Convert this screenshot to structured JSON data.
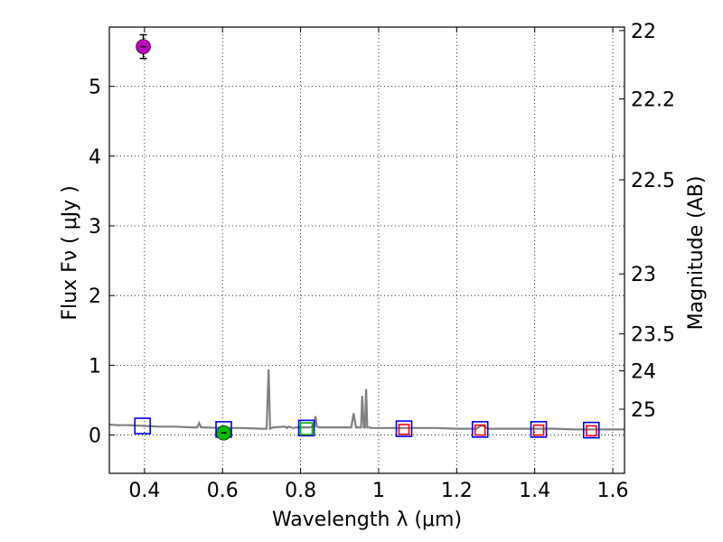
{
  "chart_data": {
    "type": "scatter",
    "xlabel": "Wavelength  λ (μm)",
    "ylabel": "Flux  Fν  ( μJy )",
    "ylabel_right": "Magnitude (AB)",
    "xlim": [
      0.31,
      1.63
    ],
    "ylim": [
      -0.55,
      5.85
    ],
    "grid": true,
    "x_ticks": [
      0.4,
      0.6,
      0.8,
      1.0,
      1.2,
      1.4,
      1.6
    ],
    "x_tick_labels": [
      "0.4",
      "0.6",
      "0.8",
      "1",
      "1.2",
      "1.4",
      "1.6"
    ],
    "y_ticks": [
      0,
      1,
      2,
      3,
      4,
      5
    ],
    "y_tick_labels": [
      "0",
      "1",
      "2",
      "3",
      "4",
      "5"
    ],
    "right_ticks": [
      {
        "label": "22",
        "flux": 5.8
      },
      {
        "label": "22.2",
        "flux": 4.82
      },
      {
        "label": "22.5",
        "flux": 3.66
      },
      {
        "label": "23",
        "flux": 2.31
      },
      {
        "label": "23.5",
        "flux": 1.45
      },
      {
        "label": "24",
        "flux": 0.92
      },
      {
        "label": "25",
        "flux": 0.37
      }
    ],
    "series": [
      {
        "kind": "line",
        "color": "#808080",
        "x": [
          0.31,
          0.33,
          0.36,
          0.4,
          0.44,
          0.48,
          0.52,
          0.535,
          0.54,
          0.545,
          0.55,
          0.6,
          0.65,
          0.7,
          0.713,
          0.718,
          0.722,
          0.73,
          0.76,
          0.765,
          0.77,
          0.78,
          0.79,
          0.8,
          0.82,
          0.835,
          0.838,
          0.842,
          0.85,
          0.9,
          0.93,
          0.936,
          0.942,
          0.95,
          0.955,
          0.958,
          0.962,
          0.965,
          0.968,
          0.971,
          0.975,
          0.98,
          1.0,
          1.05,
          1.1,
          1.15,
          1.2,
          1.25,
          1.265,
          1.28,
          1.3,
          1.35,
          1.4,
          1.45,
          1.5,
          1.55,
          1.6,
          1.63
        ],
        "y": [
          0.15,
          0.14,
          0.14,
          0.13,
          0.12,
          0.12,
          0.11,
          0.11,
          0.17,
          0.11,
          0.11,
          0.1,
          0.1,
          0.09,
          0.09,
          0.94,
          0.09,
          0.11,
          0.12,
          0.1,
          0.12,
          0.1,
          0.11,
          0.11,
          0.11,
          0.12,
          0.27,
          0.12,
          0.11,
          0.11,
          0.11,
          0.31,
          0.11,
          0.11,
          0.11,
          0.56,
          0.11,
          0.11,
          0.66,
          0.11,
          0.11,
          0.1,
          0.1,
          0.1,
          0.1,
          0.1,
          0.09,
          0.09,
          0.14,
          0.09,
          0.09,
          0.09,
          0.09,
          0.09,
          0.08,
          0.08,
          0.08,
          0.08
        ]
      },
      {
        "kind": "square-markers",
        "color": "#0000ff",
        "x": [
          0.395,
          0.603,
          0.815,
          1.065,
          1.26,
          1.41,
          1.545
        ],
        "y": [
          0.13,
          0.08,
          0.1,
          0.09,
          0.08,
          0.08,
          0.07
        ]
      },
      {
        "kind": "square-markers",
        "color": "#ff0000",
        "x": [
          1.065,
          1.26,
          1.41,
          1.545
        ],
        "y": [
          0.08,
          0.07,
          0.07,
          0.06
        ]
      },
      {
        "kind": "square-markers",
        "color": "#00aa00",
        "x": [
          0.815
        ],
        "y": [
          0.09
        ]
      },
      {
        "kind": "circle-markers",
        "color": "#00bb00",
        "x": [
          0.603
        ],
        "y": [
          0.03
        ],
        "yerr": [
          0.02
        ]
      },
      {
        "kind": "circle-markers",
        "color": "#bb00bb",
        "x": [
          0.397
        ],
        "y": [
          5.57
        ],
        "yerr": [
          0.17
        ]
      }
    ]
  }
}
